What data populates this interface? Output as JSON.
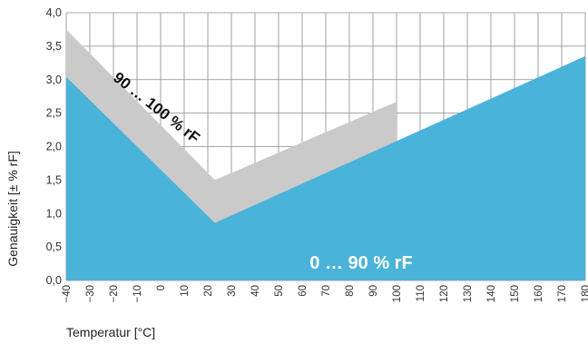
{
  "chart_data": {
    "type": "area",
    "xlabel": "Temperatur [°C]",
    "ylabel": "Genauigkeit [± % rF]",
    "xlim": [
      -40,
      180
    ],
    "ylim": [
      0,
      4.0
    ],
    "x_ticks": [
      "−40",
      "−30",
      "−20",
      "−10",
      "0",
      "10",
      "20",
      "30",
      "40",
      "50",
      "60",
      "70",
      "80",
      "90",
      "100",
      "110",
      "120",
      "130",
      "140",
      "150",
      "160",
      "170",
      "180"
    ],
    "y_ticks": [
      "0,0",
      "0,5",
      "1,0",
      "1,5",
      "2,0",
      "2,5",
      "3,0",
      "3,5",
      "4,0"
    ],
    "grid": true,
    "colors": {
      "series_0_90": "#4ab3d9",
      "series_90_100": "#cacaca",
      "annotation_light": "#ffffff",
      "annotation_dark": "#111111"
    },
    "series": [
      {
        "name": "0 … 90 % rF",
        "x": [
          -40,
          23,
          180
        ],
        "y": [
          3.04,
          0.86,
          3.35
        ]
      },
      {
        "name": "90 … 100 % rF",
        "x": [
          -40,
          23,
          100
        ],
        "y": [
          3.75,
          1.5,
          2.67
        ]
      }
    ],
    "annotations": [
      {
        "text": "0 … 90 % rF",
        "x": 85,
        "y": 0.27
      },
      {
        "text": "90 … 100 % rF",
        "x": -2,
        "y": 2.57,
        "rotation_deg": 38
      }
    ]
  }
}
